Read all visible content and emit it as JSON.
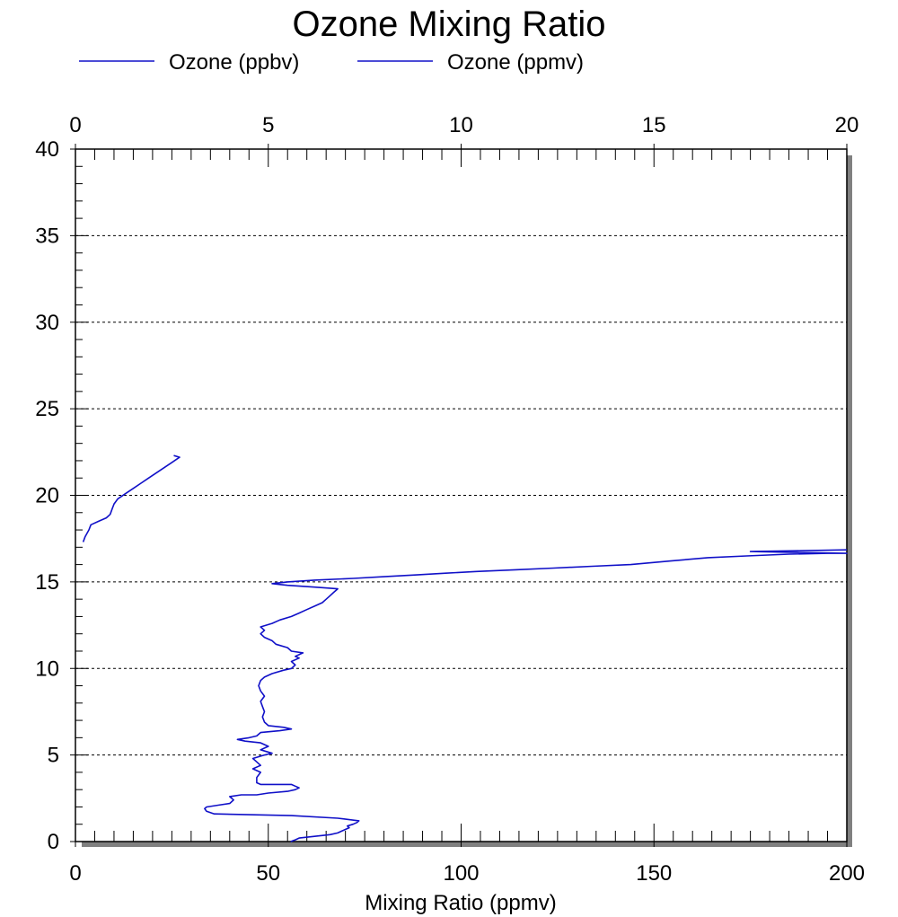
{
  "chart_data": {
    "type": "line",
    "title": "Ozone Mixing Ratio",
    "xlabel": "Mixing Ratio (ppmv)",
    "x_bottom": {
      "range": [
        0,
        200
      ],
      "ticks": [
        "0",
        "50",
        "100",
        "150",
        "200"
      ],
      "tick_values": [
        0,
        50,
        100,
        150,
        200
      ]
    },
    "x_top": {
      "range": [
        0,
        20
      ],
      "ticks": [
        "0",
        "5",
        "10",
        "15",
        "20"
      ],
      "tick_values": [
        0,
        5,
        10,
        15,
        20
      ]
    },
    "y": {
      "range": [
        0,
        40
      ],
      "ticks": [
        "0",
        "5",
        "10",
        "15",
        "20",
        "25",
        "30",
        "35",
        "40"
      ],
      "tick_values": [
        0,
        5,
        10,
        15,
        20,
        25,
        30,
        35,
        40
      ]
    },
    "grid": "horizontal dashed",
    "legend_position": "top-left",
    "series": [
      {
        "name": "Ozone (ppbv)",
        "axis": "bottom",
        "color": "#1010c8",
        "points": [
          [
            55.8,
            0.0
          ],
          [
            57,
            0.1
          ],
          [
            58,
            0.2
          ],
          [
            62,
            0.3
          ],
          [
            66,
            0.4
          ],
          [
            68,
            0.5
          ],
          [
            69,
            0.6
          ],
          [
            70,
            0.7
          ],
          [
            71,
            0.8
          ],
          [
            70.5,
            0.9
          ],
          [
            72,
            1.0
          ],
          [
            73,
            1.1
          ],
          [
            73.5,
            1.2
          ],
          [
            68,
            1.35
          ],
          [
            56,
            1.5
          ],
          [
            45,
            1.55
          ],
          [
            36,
            1.6
          ],
          [
            34,
            1.75
          ],
          [
            33.5,
            1.9
          ],
          [
            34,
            2.0
          ],
          [
            37,
            2.1
          ],
          [
            40,
            2.2
          ],
          [
            41,
            2.4
          ],
          [
            40,
            2.6
          ],
          [
            43,
            2.7
          ],
          [
            47,
            2.7
          ],
          [
            50,
            2.8
          ],
          [
            55,
            2.9
          ],
          [
            57,
            3.0
          ],
          [
            58,
            3.1
          ],
          [
            57,
            3.2
          ],
          [
            56,
            3.3
          ],
          [
            48,
            3.3
          ],
          [
            47,
            3.4
          ],
          [
            47,
            3.7
          ],
          [
            48,
            4.0
          ],
          [
            46,
            4.2
          ],
          [
            48,
            4.4
          ],
          [
            47,
            4.6
          ],
          [
            46,
            4.8
          ],
          [
            49,
            5.0
          ],
          [
            51,
            5.1
          ],
          [
            48,
            5.3
          ],
          [
            50,
            5.5
          ],
          [
            48,
            5.7
          ],
          [
            44,
            5.8
          ],
          [
            42,
            5.9
          ],
          [
            45,
            6.0
          ],
          [
            47,
            6.1
          ],
          [
            48,
            6.3
          ],
          [
            53,
            6.4
          ],
          [
            56,
            6.5
          ],
          [
            54,
            6.6
          ],
          [
            50,
            6.7
          ],
          [
            49,
            6.9
          ],
          [
            48.5,
            7.2
          ],
          [
            49,
            7.5
          ],
          [
            48.5,
            7.8
          ],
          [
            48,
            8.1
          ],
          [
            49,
            8.4
          ],
          [
            48,
            8.7
          ],
          [
            47.5,
            9.0
          ],
          [
            48,
            9.3
          ],
          [
            49,
            9.5
          ],
          [
            51,
            9.7
          ],
          [
            54,
            9.9
          ],
          [
            56,
            10.0
          ],
          [
            57,
            10.2
          ],
          [
            56,
            10.4
          ],
          [
            58,
            10.6
          ],
          [
            57,
            10.7
          ],
          [
            59,
            10.9
          ],
          [
            56,
            11.0
          ],
          [
            55,
            11.2
          ],
          [
            52,
            11.4
          ],
          [
            51,
            11.6
          ],
          [
            49,
            11.8
          ],
          [
            48,
            12.0
          ],
          [
            49,
            12.2
          ],
          [
            48,
            12.4
          ],
          [
            51,
            12.6
          ],
          [
            53,
            12.8
          ],
          [
            56,
            13.0
          ],
          [
            58,
            13.2
          ],
          [
            60,
            13.4
          ],
          [
            62,
            13.6
          ],
          [
            64,
            13.8
          ],
          [
            65,
            14.0
          ],
          [
            66,
            14.2
          ],
          [
            67,
            14.4
          ],
          [
            68,
            14.6
          ],
          [
            62,
            14.7
          ],
          [
            55,
            14.8
          ],
          [
            51,
            14.9
          ],
          [
            55,
            15.0
          ],
          [
            62,
            15.1
          ],
          [
            72,
            15.2
          ],
          [
            80,
            15.3
          ],
          [
            88,
            15.4
          ],
          [
            96,
            15.5
          ],
          [
            104,
            15.6
          ],
          [
            114,
            15.7
          ],
          [
            124,
            15.8
          ],
          [
            134,
            15.9
          ],
          [
            144,
            16.0
          ],
          [
            154,
            16.2
          ],
          [
            164,
            16.4
          ],
          [
            174,
            16.5
          ],
          [
            185,
            16.6
          ],
          [
            195,
            16.65
          ],
          [
            200,
            16.65
          ],
          [
            187,
            16.7
          ],
          [
            175,
            16.75
          ],
          [
            188,
            16.8
          ],
          [
            200,
            16.85
          ]
        ]
      },
      {
        "name": "Ozone (ppmv)",
        "axis": "top",
        "color": "#1010c8",
        "points": [
          [
            0.2,
            17.3
          ],
          [
            0.25,
            17.6
          ],
          [
            0.35,
            18.0
          ],
          [
            0.4,
            18.3
          ],
          [
            0.6,
            18.5
          ],
          [
            0.8,
            18.7
          ],
          [
            0.9,
            18.9
          ],
          [
            0.95,
            19.2
          ],
          [
            1.0,
            19.5
          ],
          [
            1.1,
            19.8
          ],
          [
            1.3,
            20.1
          ],
          [
            1.5,
            20.4
          ],
          [
            1.7,
            20.7
          ],
          [
            1.9,
            21.0
          ],
          [
            2.1,
            21.3
          ],
          [
            2.3,
            21.6
          ],
          [
            2.5,
            21.9
          ],
          [
            2.7,
            22.2
          ],
          [
            2.55,
            22.3
          ]
        ]
      }
    ]
  }
}
